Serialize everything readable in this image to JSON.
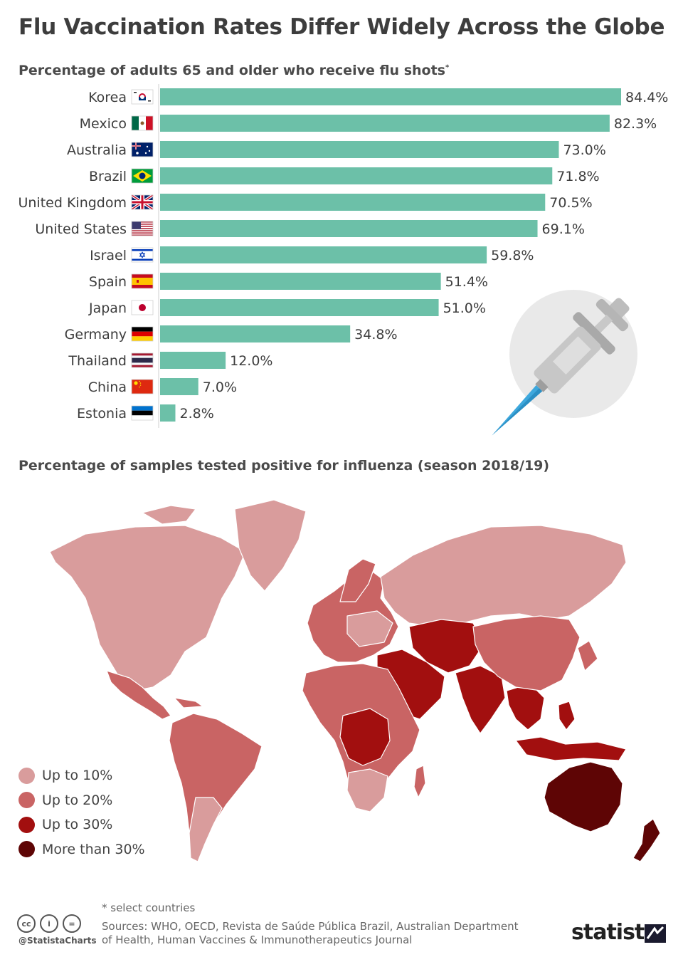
{
  "title": "Flu Vaccination Rates Differ Widely Across the Globe",
  "subtitle_vaccination": "Percentage of adults 65 and older who receive flu shots",
  "subtitle_vaccination_mark": "*",
  "subtitle_map": "Percentage of samples tested positive for influenza (season 2018/19)",
  "chart_data": [
    {
      "type": "bar",
      "orientation": "horizontal",
      "categories": [
        "Korea",
        "Mexico",
        "Australia",
        "Brazil",
        "United Kingdom",
        "United States",
        "Israel",
        "Spain",
        "Japan",
        "Germany",
        "Thailand",
        "China",
        "Estonia"
      ],
      "values": [
        84.4,
        82.3,
        73.0,
        71.8,
        70.5,
        69.1,
        59.8,
        51.4,
        51.0,
        34.8,
        12.0,
        7.0,
        2.8
      ],
      "value_labels": [
        "84.4%",
        "82.3%",
        "73.0%",
        "71.8%",
        "70.5%",
        "69.1%",
        "59.8%",
        "51.4%",
        "51.0%",
        "34.8%",
        "12.0%",
        "7.0%",
        "2.8%"
      ],
      "flags": [
        "korea-flag-icon",
        "mexico-flag-icon",
        "australia-flag-icon",
        "brazil-flag-icon",
        "uk-flag-icon",
        "usa-flag-icon",
        "israel-flag-icon",
        "spain-flag-icon",
        "japan-flag-icon",
        "germany-flag-icon",
        "thailand-flag-icon",
        "china-flag-icon",
        "estonia-flag-icon"
      ],
      "bar_color": "#6cc0a8",
      "xlim": [
        0,
        84.4
      ]
    }
  ],
  "map": {
    "legend": [
      {
        "label": "Up to 10%",
        "color": "#d99c9c"
      },
      {
        "label": "Up to 20%",
        "color": "#c96464"
      },
      {
        "label": "Up to 30%",
        "color": "#a20f0f"
      },
      {
        "label": "More than 30%",
        "color": "#5e0505"
      }
    ]
  },
  "illustration": "syringe-icon",
  "footer": {
    "footnote": "* select countries",
    "sources_line1": "Sources: WHO, OECD, Revista de Saúde Pública Brazil, Australian Department",
    "sources_line2": "of Health, Human Vaccines & Immunotherapeutics Journal",
    "handle": "@StatistaCharts",
    "brand": "statista",
    "cc_labels": [
      "cc",
      "i",
      "="
    ]
  }
}
